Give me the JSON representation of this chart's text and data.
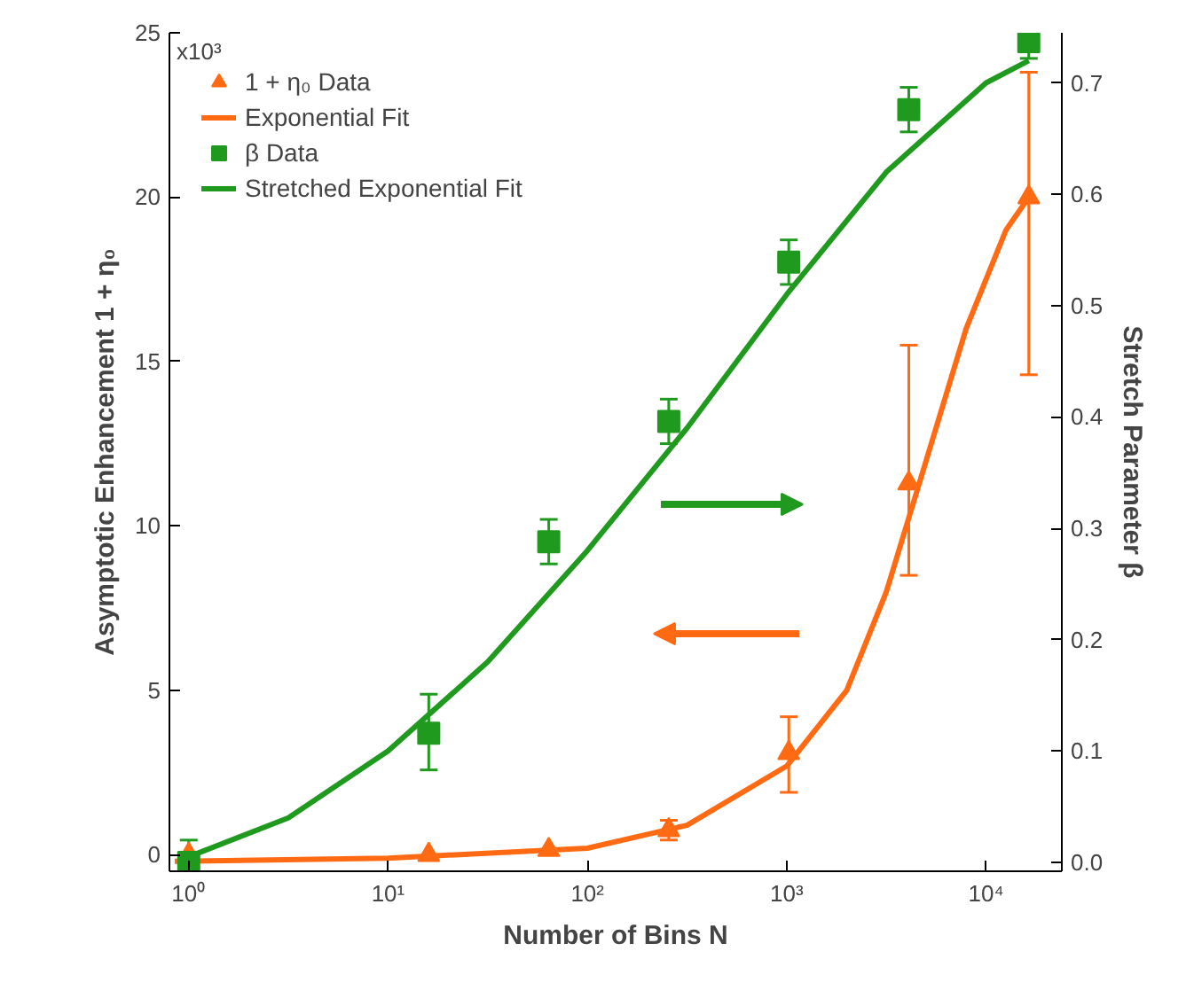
{
  "chart_data": {
    "type": "scatter",
    "xlabel": "Number of Bins N",
    "ylabel": "Asymptotic Enhancement 1 + η₀",
    "y2label": "Stretch Parameter β",
    "log": "x",
    "grid": false,
    "legend": "top left",
    "xlim": [
      0.8,
      24000
    ],
    "ylim": [
      -0.5,
      25
    ],
    "y2lim": [
      -0.008,
      0.745
    ],
    "xticks": [
      {
        "value": 1,
        "label": "10⁰"
      },
      {
        "value": 10,
        "label": "10¹"
      },
      {
        "value": 100,
        "label": "10²"
      },
      {
        "value": 1000,
        "label": "10³"
      },
      {
        "value": 10000,
        "label": "10⁴"
      }
    ],
    "yticks": [
      0,
      5,
      10,
      15,
      20,
      25
    ],
    "annotations": [
      "x10³"
    ],
    "y2ticks": [
      {
        "value": 0,
        "label": "0.0"
      },
      0.1,
      0.2,
      0.3,
      0.4,
      0.5,
      0.6,
      0.7
    ],
    "series": [
      {
        "name": "1 + η₀ Data",
        "marker": "triangle",
        "color": "#ff6a13",
        "x": [
          1,
          16,
          64,
          256,
          1024,
          4096,
          16384
        ],
        "values": [
          0,
          0,
          0.15,
          0.75,
          3.1,
          11.3,
          20.0
        ],
        "errors": [
          null,
          null,
          null,
          0.3,
          [
            1.9,
            4.2
          ],
          [
            8.5,
            15.5
          ],
          [
            14.6,
            23.8
          ]
        ]
      },
      {
        "name": "Exponential Fit",
        "type": "line",
        "color": "#ff6a13",
        "x": [
          0.85,
          10,
          100,
          316,
          1000,
          2000,
          3162,
          5012,
          7943,
          12589,
          16384
        ],
        "values": [
          -0.2,
          -0.1,
          0.2,
          0.9,
          2.7,
          5.0,
          8.0,
          12.0,
          16.0,
          19.0,
          20.0
        ]
      },
      {
        "name": "β Data",
        "marker": "square",
        "axis": "y2",
        "color": "#1f9a1f",
        "x": [
          1,
          16,
          64,
          256,
          1024,
          4096,
          16384
        ],
        "values": [
          0.0,
          0.116,
          0.288,
          0.396,
          0.539,
          0.676,
          0.737
        ],
        "errors": [
          0.02,
          [
            0.083,
            0.151
          ],
          0.02,
          0.02,
          0.02,
          0.02,
          0.015
        ]
      },
      {
        "name": "Stretched Exponential Fit",
        "type": "line",
        "axis": "y2",
        "color": "#1f9a1f",
        "x": [
          1,
          3.16,
          10,
          31.6,
          100,
          316,
          1000,
          3162,
          10000,
          16384
        ],
        "values": [
          0.005,
          0.04,
          0.1,
          0.18,
          0.28,
          0.39,
          0.51,
          0.62,
          0.7,
          0.72
        ]
      }
    ]
  }
}
